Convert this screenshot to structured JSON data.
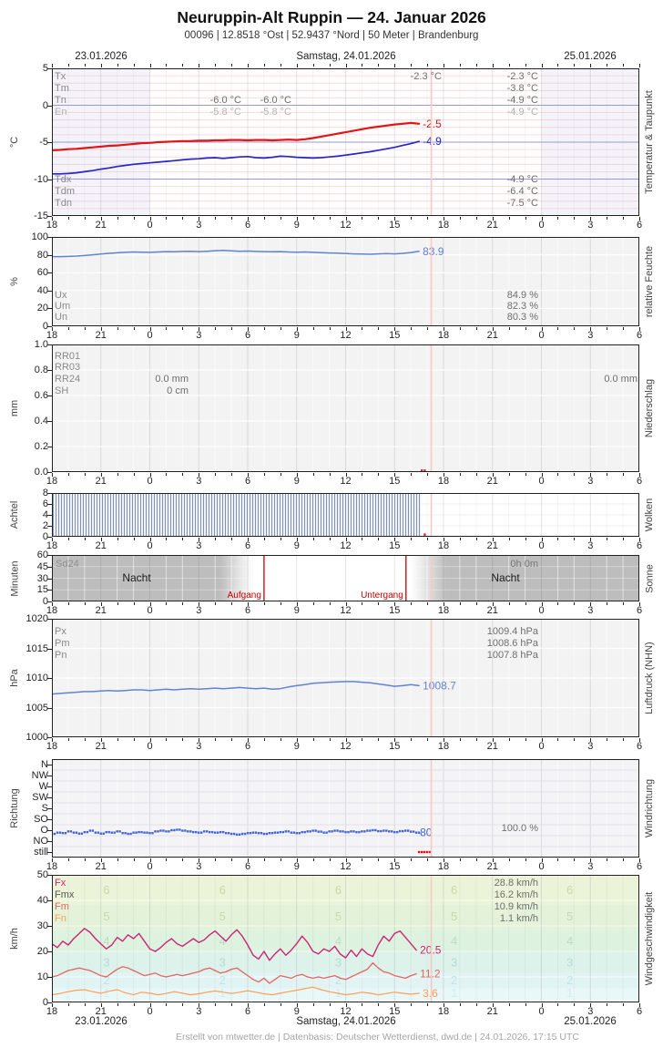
{
  "header": {
    "title": "Neuruppin-Alt Ruppin  —  24. Januar 2026",
    "subtitle": "00096  |  12.8518 °Ost  |  52.9437 °Nord  |  50 Meter  |  Brandenburg"
  },
  "axis": {
    "dates": [
      "23.01.2026",
      "Samstag, 24.01.2026",
      "25.01.2026"
    ],
    "xtick_labels": [
      "18",
      "21",
      "0",
      "3",
      "6",
      "9",
      "12",
      "15",
      "18",
      "21",
      "0",
      "3",
      "6"
    ],
    "xlim_hours": [
      -6,
      30
    ],
    "current_time_h": 17.25,
    "current_time_color": "#f6c9c4"
  },
  "footer": {
    "credit": "Erstellt von mtwetter.de | Datenbasis: Deutscher Wetterdienst, dwd.de | 24.01.2026, 17:15 UTC"
  },
  "chart_data": [
    {
      "id": "temperature",
      "type": "line",
      "ylabel": "°C",
      "right_label": "Temperatur & Taupunkt",
      "ylim": [
        -15,
        5
      ],
      "yticks": [
        "5",
        "0",
        "-5",
        "-10",
        "-15"
      ],
      "major_hlines": [
        0,
        -5,
        -10
      ],
      "series": [
        {
          "name": "Temperatur",
          "color": "#e21414",
          "width": 2.2,
          "start": -6,
          "step": 0.5,
          "end_label": "-2.5",
          "values": [
            -6.1,
            -6.05,
            -5.95,
            -5.9,
            -5.8,
            -5.7,
            -5.6,
            -5.5,
            -5.45,
            -5.35,
            -5.25,
            -5.15,
            -5.1,
            -5.0,
            -4.95,
            -4.9,
            -4.85,
            -4.85,
            -4.8,
            -4.8,
            -4.75,
            -4.75,
            -4.7,
            -4.7,
            -4.75,
            -4.7,
            -4.7,
            -4.75,
            -4.7,
            -4.65,
            -4.7,
            -4.6,
            -4.45,
            -4.25,
            -4.05,
            -3.85,
            -3.65,
            -3.45,
            -3.25,
            -3.05,
            -2.9,
            -2.75,
            -2.6,
            -2.5,
            -2.4,
            -2.5
          ]
        },
        {
          "name": "Taupunkt",
          "color": "#2626cc",
          "width": 1.7,
          "start": -6,
          "step": 0.5,
          "end_label": "-4.9",
          "values": [
            -9.3,
            -9.3,
            -9.25,
            -9.15,
            -9.0,
            -8.85,
            -8.65,
            -8.5,
            -8.3,
            -8.15,
            -8.0,
            -7.9,
            -7.8,
            -7.7,
            -7.6,
            -7.5,
            -7.4,
            -7.3,
            -7.25,
            -7.15,
            -7.1,
            -7.2,
            -7.1,
            -7.0,
            -6.95,
            -7.1,
            -7.15,
            -7.05,
            -6.9,
            -6.95,
            -7.05,
            -7.1,
            -7.15,
            -7.1,
            -7.0,
            -6.9,
            -6.75,
            -6.6,
            -6.45,
            -6.3,
            -6.1,
            -5.9,
            -5.7,
            -5.45,
            -5.2,
            -4.9
          ]
        }
      ],
      "stats": [
        {
          "row": 85,
          "label": "Tx",
          "cells": [
            {
              "anchor": "txmid",
              "text": "-2.3 °C"
            },
            {
              "anchor": "right",
              "text": "-2.3 °C"
            }
          ]
        },
        {
          "row": 98,
          "label": "Tm",
          "cells": [
            {
              "anchor": "right",
              "text": "-3.8 °C"
            }
          ]
        },
        {
          "row": 111,
          "label": "Tn",
          "cells": [
            {
              "anchor": "mid1",
              "text": "-6.0 °C"
            },
            {
              "anchor": "mid2",
              "text": "-6.0 °C"
            },
            {
              "anchor": "right",
              "text": "-4.9 °C"
            }
          ]
        },
        {
          "row": 124,
          "label": "En",
          "light": true,
          "cells": [
            {
              "anchor": "mid1",
              "text": "-5.8 °C"
            },
            {
              "anchor": "mid2",
              "text": "-5.8 °C"
            },
            {
              "anchor": "right",
              "text": "-4.9 °C"
            }
          ]
        },
        {
          "row": 198,
          "label": "Tdx",
          "cells": [
            {
              "anchor": "right",
              "text": "-4.9 °C"
            }
          ]
        },
        {
          "row": 211,
          "label": "Tdm",
          "cells": [
            {
              "anchor": "right",
              "text": "-6.4 °C"
            }
          ]
        },
        {
          "row": 224,
          "label": "Tdn",
          "cells": [
            {
              "anchor": "right",
              "text": "-7.5 °C"
            }
          ]
        }
      ]
    },
    {
      "id": "humidity",
      "type": "line",
      "ylabel": "%",
      "right_label": "relative Feuchte",
      "ylim": [
        0,
        100
      ],
      "yticks": [
        "100",
        "80",
        "60",
        "40",
        "20",
        "0"
      ],
      "series": [
        {
          "name": "relative Feuchte",
          "color": "#6282d2",
          "width": 1.5,
          "start": -6,
          "step": 0.5,
          "end_label": "83.9",
          "values": [
            78,
            78,
            78.2,
            78.6,
            79.2,
            80.0,
            80.8,
            81.6,
            82.2,
            82.8,
            83.2,
            83.0,
            82.8,
            83.2,
            83.6,
            83.4,
            83.8,
            84.0,
            83.6,
            84.0,
            84.6,
            85.0,
            84.4,
            84.0,
            84.2,
            83.8,
            83.6,
            83.4,
            83.6,
            83.2,
            83.0,
            83.2,
            82.8,
            82.4,
            82.0,
            81.8,
            81.4,
            81.0,
            80.8,
            80.6,
            81.0,
            81.4,
            81.0,
            81.6,
            82.6,
            83.9
          ]
        }
      ],
      "stats": [
        {
          "row": 325,
          "label": "Ux",
          "cells": [
            {
              "anchor": "right",
              "text": "84.9 %"
            }
          ]
        },
        {
          "row": 337,
          "label": "Um",
          "cells": [
            {
              "anchor": "right",
              "text": "82.3 %"
            }
          ]
        },
        {
          "row": 349,
          "label": "Un",
          "cells": [
            {
              "anchor": "right",
              "text": "80.3 %"
            }
          ]
        }
      ]
    },
    {
      "id": "precipitation",
      "type": "line",
      "ylabel": "mm",
      "right_label": "Niederschlag",
      "ylim": [
        0,
        1
      ],
      "yticks": [
        "1.0",
        "0.8",
        "0.6",
        "0.4",
        "0.2",
        "0.0"
      ],
      "series": [],
      "markers": [
        {
          "t": 16.67,
          "v": 0.012,
          "color": "#e02020"
        },
        {
          "t": 16.85,
          "v": 0.012,
          "color": "#e02020"
        }
      ],
      "stats": [
        {
          "row": 392,
          "label": "RR01",
          "cells": []
        },
        {
          "row": 404,
          "label": "RR03",
          "cells": []
        },
        {
          "row": 417,
          "label": "RR24",
          "cells": [
            {
              "anchor": "pmid",
              "text": "0.0 mm"
            },
            {
              "anchor": "far",
              "text": "0.0 mm"
            }
          ]
        },
        {
          "row": 430,
          "label": "SH",
          "cells": [
            {
              "anchor": "pmid",
              "text": "0 cm"
            }
          ]
        }
      ]
    },
    {
      "id": "clouds",
      "type": "bar",
      "ylabel": "Achtel",
      "right_label": "Wolken",
      "ylim": [
        0,
        8
      ],
      "yticks": [
        "8",
        "6",
        "4",
        "2",
        "0"
      ],
      "coverage": {
        "start": -6,
        "end": 16.6,
        "value": 8
      },
      "hatch_colors": {
        "line": "#8494ae",
        "bg": "#eef2f7"
      },
      "markers": [
        {
          "t": 16.85,
          "v": 0.4,
          "color": "#e02020"
        }
      ]
    },
    {
      "id": "sun",
      "type": "area",
      "ylabel": "Minuten",
      "right_label": "Sonne",
      "ylim": [
        0,
        60
      ],
      "yticks": [
        "60",
        "45",
        "30",
        "15",
        "0"
      ],
      "sunrise_h": 7.0,
      "sunset_h": 15.7,
      "night_color": "#bdbdbd",
      "labels": {
        "sd24": "Sd24",
        "total": "0h 0m",
        "night": "Nacht",
        "rise": "Aufgang",
        "set": "Untergang"
      },
      "accent": "#cc0000"
    },
    {
      "id": "pressure",
      "type": "line",
      "ylabel": "hPa",
      "right_label": "Luftdruck (NHN)",
      "ylim": [
        1000,
        1020
      ],
      "yticks": [
        "1020",
        "1015",
        "1010",
        "1005",
        "1000"
      ],
      "series": [
        {
          "name": "Luftdruck",
          "color": "#6282d2",
          "width": 1.5,
          "start": -6,
          "step": 0.5,
          "end_label": "1008.7",
          "values": [
            1007.3,
            1007.4,
            1007.5,
            1007.6,
            1007.7,
            1007.7,
            1007.8,
            1007.9,
            1007.8,
            1007.9,
            1008.0,
            1008.0,
            1007.9,
            1008.0,
            1008.1,
            1008.0,
            1008.1,
            1008.2,
            1008.1,
            1008.2,
            1008.3,
            1008.2,
            1008.3,
            1008.4,
            1008.3,
            1008.2,
            1008.3,
            1008.1,
            1008.2,
            1008.5,
            1008.7,
            1008.9,
            1009.1,
            1009.2,
            1009.3,
            1009.35,
            1009.4,
            1009.4,
            1009.3,
            1009.2,
            1009.0,
            1008.8,
            1008.6,
            1008.7,
            1008.9,
            1008.7
          ]
        }
      ],
      "stats": [
        {
          "row": 694,
          "label": "Px",
          "cells": [
            {
              "anchor": "right",
              "text": "1009.4 hPa"
            }
          ]
        },
        {
          "row": 707,
          "label": "Pm",
          "cells": [
            {
              "anchor": "right",
              "text": "1008.6 hPa"
            }
          ]
        },
        {
          "row": 720,
          "label": "Pn",
          "cells": [
            {
              "anchor": "right",
              "text": "1007.8 hPa"
            }
          ]
        }
      ]
    },
    {
      "id": "wind_direction",
      "type": "scatter",
      "ylabel": "Richtung",
      "right_label": "Windrichtung",
      "categories": [
        "N",
        "NW",
        "W",
        "SW",
        "S",
        "SO",
        "O",
        "NO",
        "still"
      ],
      "dot_color": "#4262d6",
      "end_label": "80",
      "deg_series": {
        "start": -6,
        "step": 0.33333,
        "values": [
          75,
          80,
          78,
          85,
          80,
          76,
          82,
          88,
          80,
          76,
          82,
          80,
          85,
          78,
          75,
          80,
          82,
          80,
          78,
          85,
          88,
          85,
          90,
          92,
          88,
          85,
          82,
          80,
          85,
          82,
          80,
          82,
          78,
          75,
          72,
          75,
          78,
          80,
          78,
          75,
          78,
          80,
          82,
          85,
          80,
          78,
          82,
          85,
          88,
          84,
          80,
          85,
          88,
          85,
          82,
          85,
          82,
          85,
          88,
          90,
          86,
          88,
          85,
          82,
          86,
          88,
          84,
          80
        ]
      },
      "calm_markers": [
        16.5,
        16.67,
        16.83,
        17.0,
        17.17
      ],
      "calm_color": "#dd1111",
      "stats": [
        {
          "row": 910,
          "cells": [
            {
              "anchor": "right",
              "text": "100.0 %"
            }
          ]
        }
      ]
    },
    {
      "id": "wind_speed",
      "type": "line",
      "ylabel": "km/h",
      "right_label": "Windgeschwindigkeit",
      "ylim": [
        0,
        50
      ],
      "yticks": [
        "50",
        "40",
        "30",
        "20",
        "10",
        "0"
      ],
      "beaufort": {
        "bounds": [
          1,
          5.5,
          11.5,
          19.5,
          28.5,
          38.5,
          49.5
        ],
        "band_colors": [
          "#f2fafa",
          "#e8f7f8",
          "#e1f4f3",
          "#dcf2ea",
          "#def2e0",
          "#e3f2d9",
          "#ebf4d9",
          "#eef6dc"
        ],
        "numbers": [
          "1",
          "2",
          "3",
          "4",
          "5",
          "6"
        ],
        "number_y": [
          3.5,
          8.5,
          15.5,
          24,
          33.5,
          44
        ],
        "number_colors": [
          "#cceef4",
          "#bee4ea",
          "#b4dcd8",
          "#badcc4",
          "#c4dab0",
          "#c9d8a8"
        ],
        "label_x_h": [
          -2.65,
          4.45,
          11.55,
          18.65,
          25.74
        ]
      },
      "series": [
        {
          "name": "Fx",
          "color": "#c92574",
          "width": 1.4,
          "start": -6,
          "step": 0.33333,
          "end_label": "20.5",
          "values": [
            23,
            21.5,
            24,
            22.5,
            25,
            27,
            29,
            27.5,
            25,
            23,
            21,
            22.5,
            25.5,
            24,
            26.5,
            25,
            27,
            24,
            21,
            20,
            21.5,
            23.5,
            25,
            23,
            22,
            23.5,
            25,
            23.5,
            24.5,
            26.5,
            28,
            26,
            24,
            26.5,
            28.5,
            26,
            22.5,
            18.5,
            17,
            20,
            16.5,
            19,
            21,
            18.5,
            20.5,
            23,
            26,
            23.5,
            20,
            19,
            21,
            20,
            22,
            19,
            17.5,
            20.5,
            18,
            21,
            19,
            18,
            22.5,
            26,
            24,
            27,
            28,
            25.5,
            23,
            20.5
          ]
        },
        {
          "name": "Fm",
          "color": "#e4645f",
          "width": 1.3,
          "start": -6,
          "step": 0.33333,
          "end_label": "11.2",
          "values": [
            10,
            10.5,
            11.5,
            12.5,
            13,
            13.5,
            13,
            12.5,
            11.5,
            10.5,
            10,
            11.5,
            13,
            14,
            13.5,
            12.5,
            11.5,
            10.5,
            11,
            11.5,
            10.5,
            10,
            10.5,
            11,
            10.5,
            11,
            11.5,
            12,
            13,
            13.5,
            12.5,
            11.5,
            12,
            13,
            13.5,
            12,
            10.5,
            9,
            8,
            9.5,
            7.5,
            9,
            10.5,
            10,
            9.5,
            10.5,
            11,
            10,
            9.5,
            10,
            9.5,
            10,
            10.5,
            9.5,
            9,
            10,
            11,
            12,
            13,
            15.5,
            13.5,
            12,
            11.5,
            10.5,
            10,
            9.5,
            10.5,
            11.2
          ]
        },
        {
          "name": "Fn",
          "color": "#ff9e55",
          "width": 1.2,
          "start": -6,
          "step": 0.5,
          "end_label": "3.6",
          "values": [
            3,
            3.5,
            4.2,
            4.8,
            5,
            4.2,
            3.6,
            4.4,
            5,
            3.8,
            3,
            4,
            3.6,
            3,
            3.5,
            4.2,
            3.6,
            3,
            3.4,
            4,
            4.5,
            4,
            3.5,
            4,
            4.6,
            4,
            3.4,
            3,
            3.6,
            4.2,
            4.8,
            5.4,
            6,
            5,
            4.2,
            3.6,
            3,
            3.4,
            4,
            3.6,
            3,
            3.5,
            4,
            3.6,
            3.2,
            3.6
          ]
        }
      ],
      "legend": [
        {
          "label": "Fx",
          "color": "#c92574",
          "row": 970,
          "value": "28.8 km/h"
        },
        {
          "label": "Fmx",
          "color": "#555555",
          "row": 983,
          "value": "16.2 km/h"
        },
        {
          "label": "Fm",
          "color": "#e4645f",
          "row": 996,
          "value": "10.9 km/h"
        },
        {
          "label": "Fn",
          "color": "#ff9e55",
          "row": 1009,
          "value": "1.1 km/h"
        }
      ]
    }
  ]
}
